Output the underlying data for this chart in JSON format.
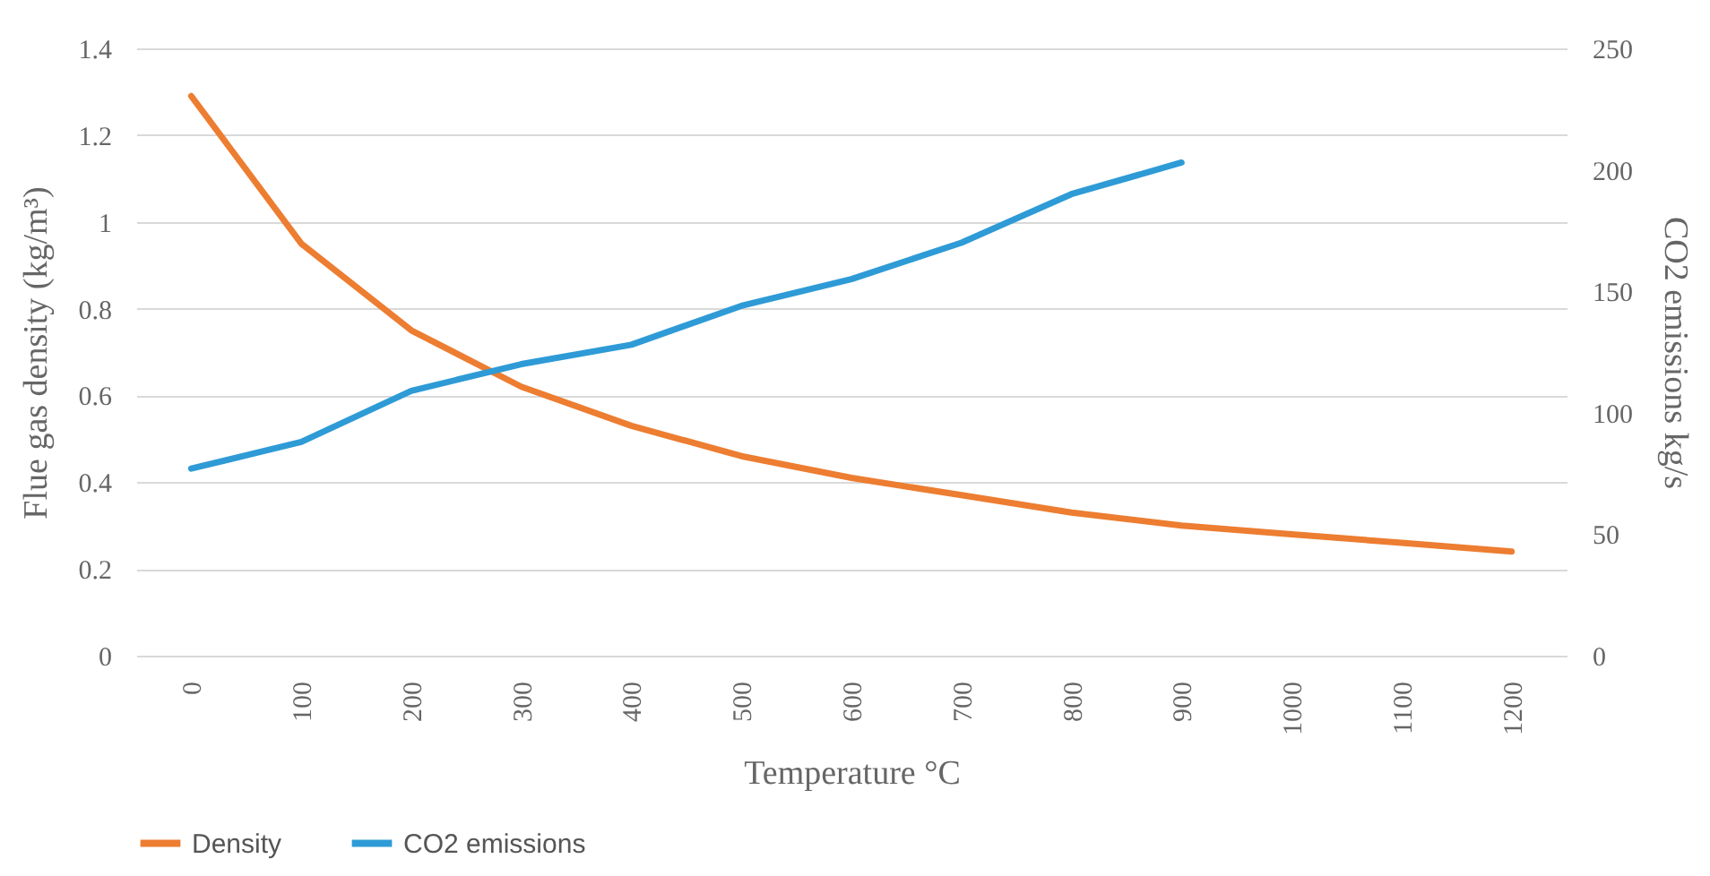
{
  "chart_data": {
    "type": "line",
    "xlabel": "Temperature °C",
    "ylabel": "Flue gas density (kg/m³)",
    "y2label": "CO2 emissions kg/s",
    "categories": [
      "0",
      "100",
      "200",
      "300",
      "400",
      "500",
      "600",
      "700",
      "800",
      "900",
      "1000",
      "1100",
      "1200"
    ],
    "series": [
      {
        "name": "Density",
        "color": "#ed7d31",
        "values": [
          1.29,
          0.95,
          0.75,
          0.62,
          0.53,
          0.46,
          0.41,
          0.37,
          0.33,
          0.3,
          0.28,
          0.26,
          0.24
        ]
      },
      {
        "name": "CO2 emissions",
        "color": "#2e9bd6",
        "axis": "y2",
        "values": [
          77,
          88,
          109,
          120,
          128,
          144,
          155,
          170,
          190,
          203,
          null,
          null,
          null
        ]
      }
    ],
    "ylim": [
      0,
      1.4
    ],
    "yticks": [
      0,
      0.2,
      0.4,
      0.6,
      0.8,
      1,
      1.2,
      1.4
    ],
    "y2lim": [
      0,
      250
    ],
    "y2ticks": [
      0,
      50,
      100,
      150,
      200,
      250
    ],
    "grid": "y",
    "legend": "bottom",
    "marker": "none",
    "line_style": "solid"
  }
}
